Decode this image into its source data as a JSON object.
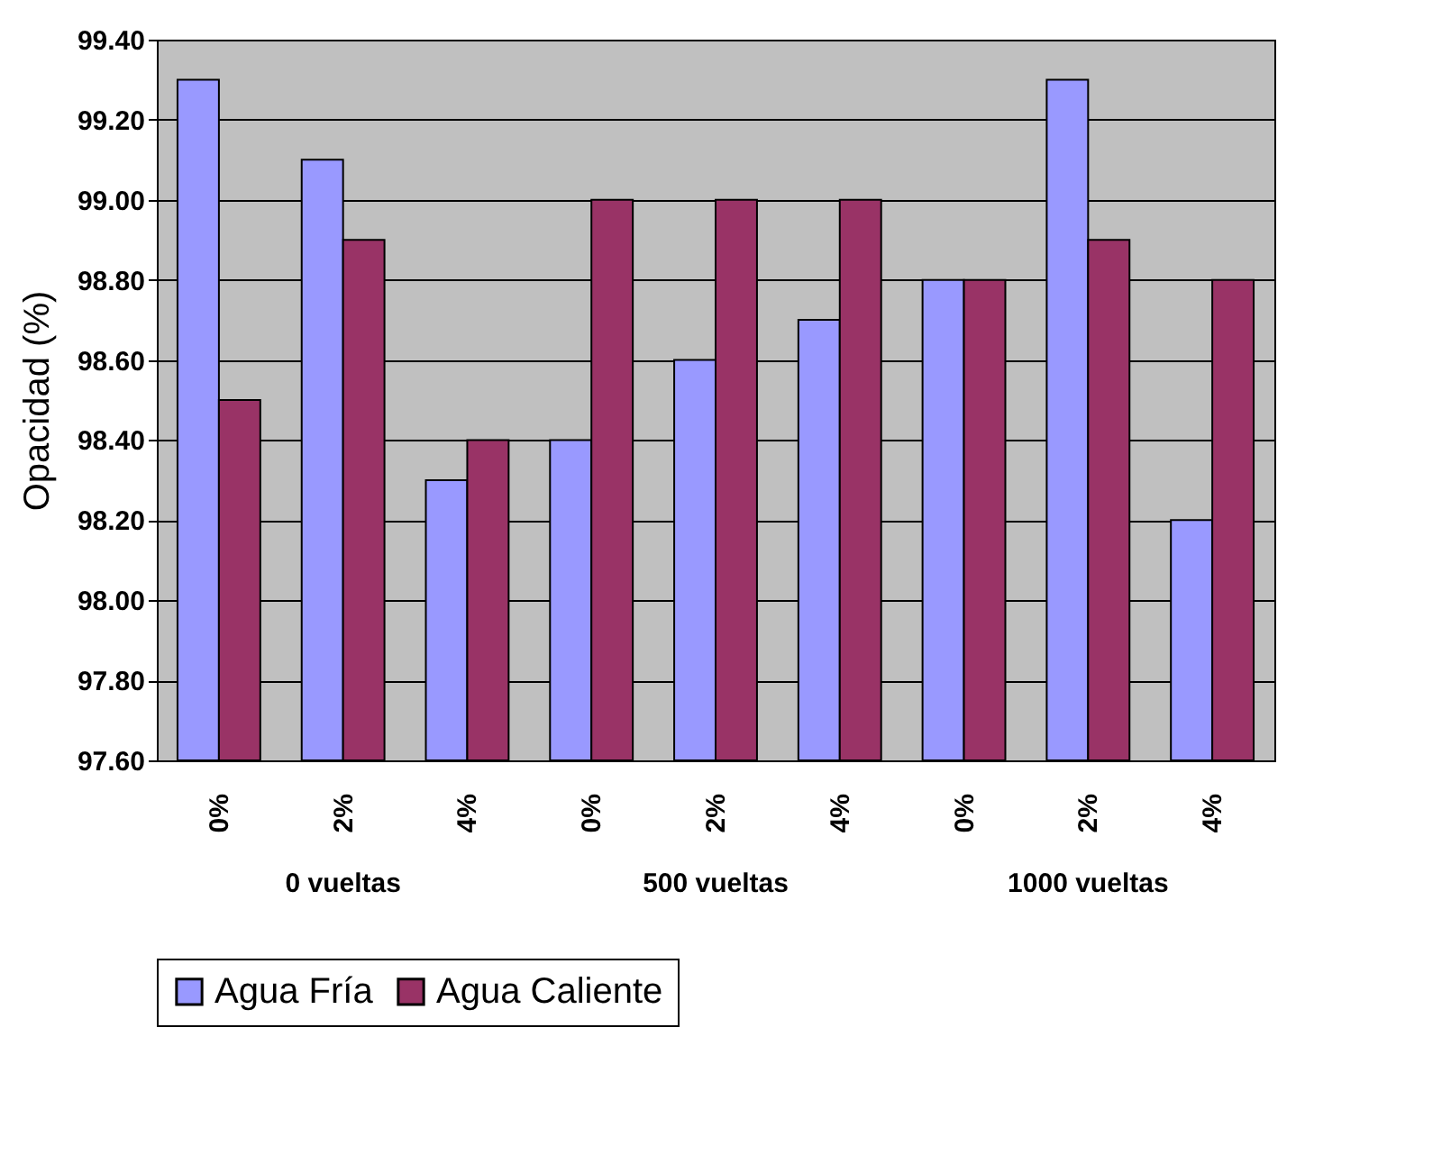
{
  "chart_data": {
    "type": "bar",
    "ylabel": "Opacidad (%)",
    "categories": [
      "0%",
      "2%",
      "4%",
      "0%",
      "2%",
      "4%",
      "0%",
      "2%",
      "4%"
    ],
    "series": [
      {
        "name": "Agua Fría",
        "color": "#9999ff",
        "values": [
          99.3,
          99.1,
          98.3,
          98.4,
          98.6,
          98.7,
          98.8,
          99.3,
          98.2
        ]
      },
      {
        "name": "Agua Caliente",
        "color": "#993366",
        "values": [
          98.5,
          98.9,
          98.4,
          99.0,
          99.0,
          99.0,
          98.8,
          98.9,
          98.8
        ]
      }
    ],
    "ylim": [
      97.6,
      99.4
    ],
    "yticks": [
      {
        "value": 97.6,
        "label": "97.60"
      },
      {
        "value": 97.8,
        "label": "97.80"
      },
      {
        "value": 98.0,
        "label": "98.00"
      },
      {
        "value": 98.2,
        "label": "98.20"
      },
      {
        "value": 98.4,
        "label": "98.40"
      },
      {
        "value": 98.6,
        "label": "98.60"
      },
      {
        "value": 98.8,
        "label": "98.80"
      },
      {
        "value": 99.0,
        "label": "99.00"
      },
      {
        "value": 99.2,
        "label": "99.20"
      },
      {
        "value": 99.4,
        "label": "99.40"
      }
    ],
    "annotations": [
      "0 vueltas",
      "500 vueltas",
      "1000 vueltas"
    ],
    "grid": "y",
    "legend": "bottom"
  }
}
